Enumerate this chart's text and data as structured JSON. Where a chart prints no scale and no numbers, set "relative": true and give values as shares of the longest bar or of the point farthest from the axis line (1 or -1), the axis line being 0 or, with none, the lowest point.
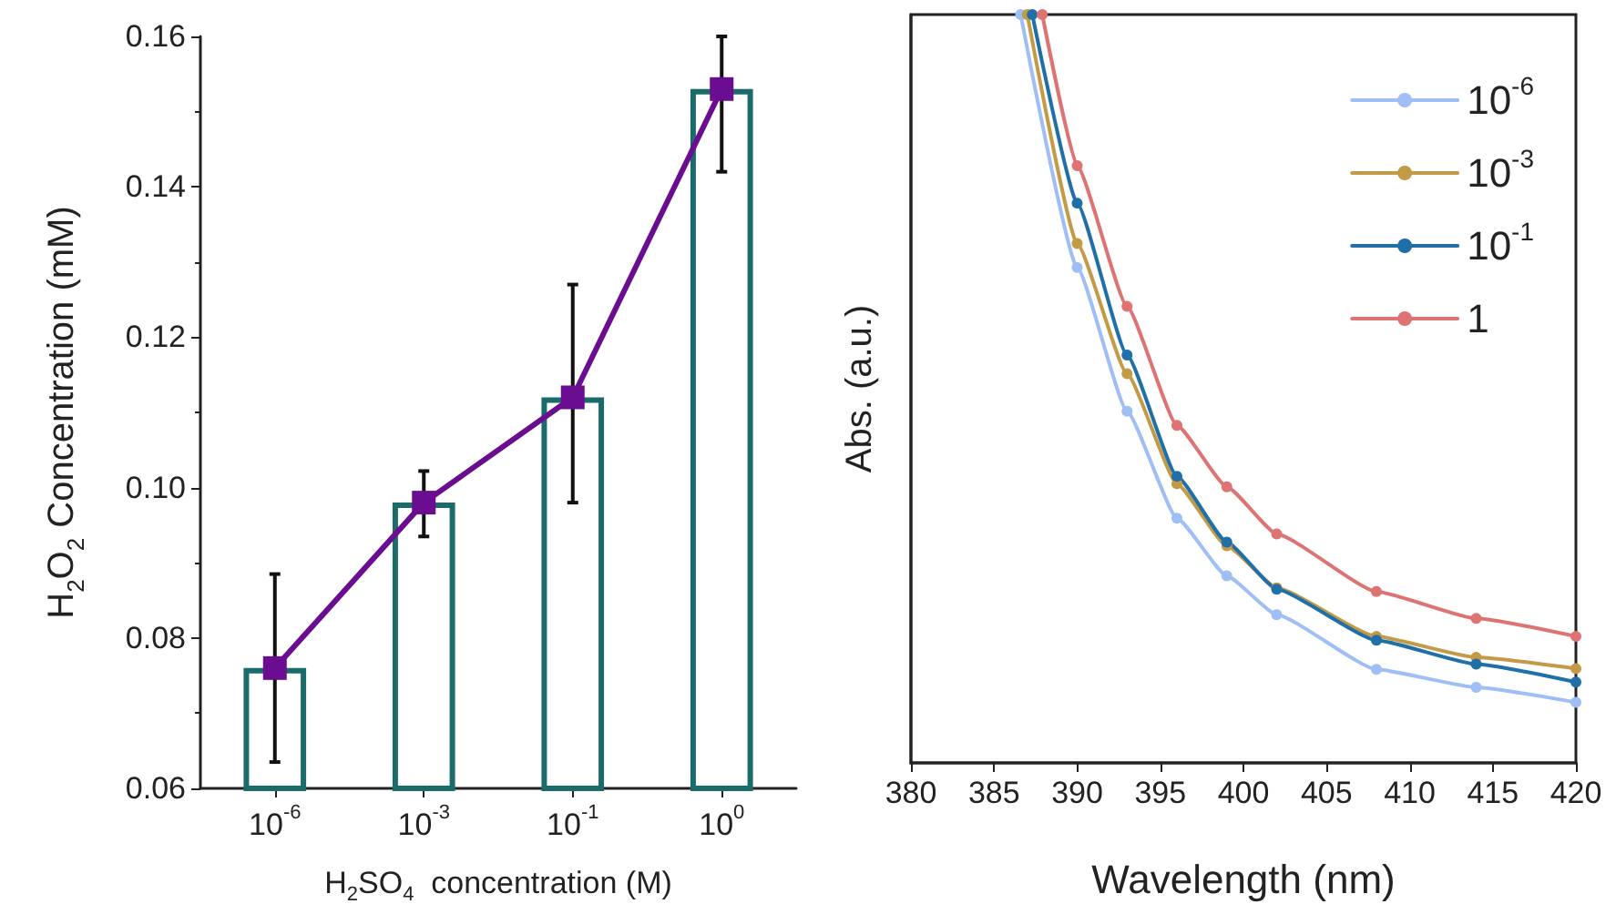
{
  "chart_data": [
    {
      "type": "bar",
      "xlabel": "H$_{2}$SO$_{4}$  concentration (M)",
      "ylabel": "H$_{2}$O$_{2}$ Concentration (mM)",
      "categories": [
        "10$^{-6}$",
        "10$^{-3}$",
        "10$^{-1}$",
        "10$^{0}$"
      ],
      "series": [
        {
          "color": "#1b6b6b",
          "values": [
            0.076,
            0.098,
            0.112,
            0.153
          ]
        },
        {
          "type": "line",
          "color": "#6a0d91",
          "values": [
            0.076,
            0.098,
            0.112,
            0.153
          ],
          "errors": [
            [
              0.0635,
              0.0885
            ],
            [
              0.0935,
              0.1022
            ],
            [
              0.098,
              0.127
            ],
            [
              0.142,
              0.16
            ]
          ]
        }
      ],
      "marker": "square",
      "ylim": [
        0.06,
        0.16
      ],
      "yticks": [
        0.06,
        0.08,
        {
          "value": 0.1,
          "label": "0.10"
        },
        0.12,
        0.14,
        0.16
      ],
      "grid": false,
      "legend": false
    },
    {
      "type": "line",
      "relative": true,
      "xlabel": "Wavelength (nm)",
      "ylabel": "Abs. (a.u.)",
      "series": [
        {
          "name": "10$^{-6}$",
          "color": "#9fbef5",
          "x": [
            386.6,
            390,
            393,
            396,
            399,
            402,
            408,
            414,
            420
          ],
          "values": [
            1.0,
            0.662,
            0.47,
            0.327,
            0.25,
            0.198,
            0.125,
            0.101,
            0.081
          ]
        },
        {
          "name": "10$^{-3}$",
          "color": "#c39a45",
          "x": [
            387.0,
            390,
            393,
            396,
            399,
            402,
            408,
            414,
            420
          ],
          "values": [
            1.0,
            0.694,
            0.52,
            0.373,
            0.29,
            0.234,
            0.169,
            0.141,
            0.126
          ]
        },
        {
          "name": "10$^{-1}$",
          "color": "#1f6fa8",
          "x": [
            387.3,
            390,
            393,
            396,
            399,
            402,
            408,
            414,
            420
          ],
          "values": [
            1.0,
            0.748,
            0.545,
            0.383,
            0.295,
            0.232,
            0.164,
            0.132,
            0.108
          ]
        },
        {
          "name": "1",
          "color": "#dd7373",
          "x": [
            387.9,
            390,
            393,
            396,
            399,
            402,
            408,
            414,
            420
          ],
          "values": [
            1.0,
            0.798,
            0.61,
            0.451,
            0.369,
            0.306,
            0.229,
            0.193,
            0.169
          ]
        }
      ],
      "xlim": [
        380,
        420
      ],
      "xticks": [
        380,
        385,
        390,
        395,
        400,
        405,
        410,
        415,
        420
      ],
      "tick_labels": "x",
      "marker": "circle",
      "legend": "top right",
      "grid": false
    }
  ]
}
